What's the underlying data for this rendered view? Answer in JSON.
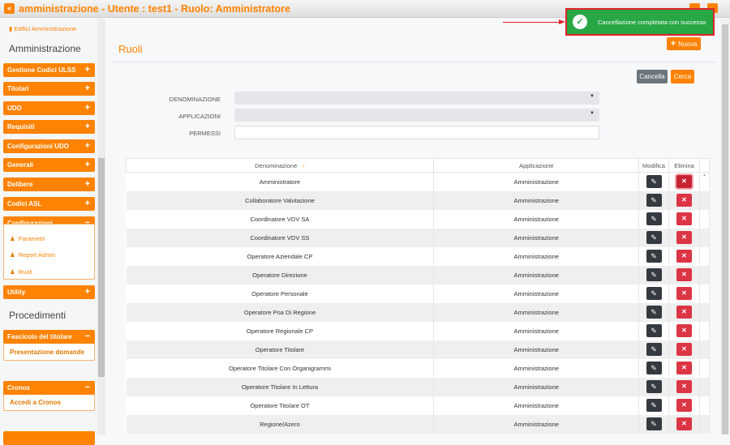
{
  "header": {
    "title": "amministrazione - Utente : test1 - Ruolo: Amministratore",
    "back_icon": "double-chevron-left-icon"
  },
  "sidebar": {
    "link_edifici": "Edifici Amministrazione",
    "section_amministrazione": "Amministrazione",
    "menus": [
      {
        "label": "Gestione Codici ULSS",
        "state": "+"
      },
      {
        "label": "Titolari",
        "state": "+"
      },
      {
        "label": "UDO",
        "state": "+"
      },
      {
        "label": "Requisiti",
        "state": "+"
      },
      {
        "label": "Configurazioni UDO",
        "state": "+"
      },
      {
        "label": "Generali",
        "state": "+"
      },
      {
        "label": "Delibere",
        "state": "+"
      },
      {
        "label": "Codici ASL",
        "state": "+"
      },
      {
        "label": "Configurazioni",
        "state": "−"
      },
      {
        "label": "Utility",
        "state": "+"
      }
    ],
    "config_items": [
      "Parametri",
      "Report Admin",
      "Ruoli"
    ],
    "section_procedimenti": "Procedimenti",
    "fascicolo": {
      "label": "Fascicolo del titolare",
      "state": "−",
      "items": [
        "Presentazione domande"
      ]
    },
    "cronos": {
      "label": "Cronos",
      "state": "−",
      "items": [
        "Accedi a Cronos"
      ]
    }
  },
  "toast": {
    "message": "Cancellazione completata con successo",
    "color": "#28a745"
  },
  "page": {
    "title": "Ruoli",
    "new_button": "Nuova",
    "clear_button": "Cancella",
    "search_button": "Cerca",
    "filters": {
      "denominazione": "DENOMINAZIONE",
      "applicazioni": "APPLICAZIONI",
      "permessi": "PERMESSI"
    }
  },
  "table": {
    "headers": [
      "Denominazione",
      "Applicazione",
      "Modifica",
      "Elimina"
    ],
    "sort_indicator": "↑",
    "rows": [
      [
        "Amministratore",
        "Amministrazione"
      ],
      [
        "Collaboratore Valutazione",
        "Amministrazione"
      ],
      [
        "Coordinatore VDV SA",
        "Amministrazione"
      ],
      [
        "Coordinatore VDV SS",
        "Amministrazione"
      ],
      [
        "Operatore Aziendale CP",
        "Amministrazione"
      ],
      [
        "Operatore Direzione",
        "Amministrazione"
      ],
      [
        "Operatore Personale",
        "Amministrazione"
      ],
      [
        "Operatore Poa Di Regione",
        "Amministrazione"
      ],
      [
        "Operatore Regionale CP",
        "Amministrazione"
      ],
      [
        "Operatore Titolare",
        "Amministrazione"
      ],
      [
        "Operatore Titolare Con Organigrammi",
        "Amministrazione"
      ],
      [
        "Operatore Titolare In Lettura",
        "Amministrazione"
      ],
      [
        "Operatore Titolare OT",
        "Amministrazione"
      ],
      [
        "Regione/Azero",
        "Amministrazione"
      ]
    ]
  },
  "colors": {
    "accent": "#ff8200",
    "danger": "#dc3545",
    "dark": "#343a40"
  }
}
